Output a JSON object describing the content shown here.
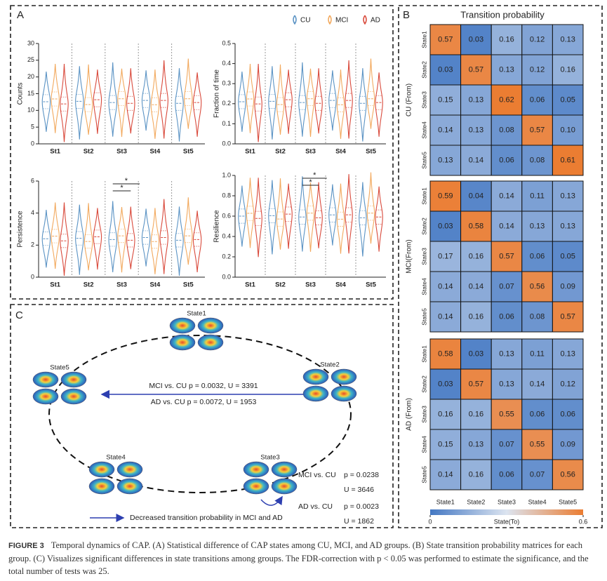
{
  "panel_a": {
    "letter": "A",
    "legend": [
      {
        "name": "CU",
        "color": "#5b93c4"
      },
      {
        "name": "MCI",
        "color": "#f2a95e"
      },
      {
        "name": "AD",
        "color": "#d94a3c"
      }
    ],
    "plots": [
      {
        "ylabel": "Counts",
        "categories": [
          "St1",
          "St2",
          "St3",
          "St4",
          "St5"
        ],
        "ylim": [
          0,
          30
        ],
        "yticks": [
          0,
          5,
          10,
          15,
          20,
          25,
          30
        ],
        "annotations": []
      },
      {
        "ylabel": "Fraction of time",
        "categories": [
          "St1",
          "St2",
          "St3",
          "St4",
          "St5"
        ],
        "ylim": [
          0,
          0.5
        ],
        "yticks": [
          {
            "value": 0,
            "label": "0.0"
          },
          0.1,
          0.2,
          0.3,
          0.4,
          0.5
        ],
        "annotations": []
      },
      {
        "ylabel": "Persistence",
        "categories": [
          "St1",
          "St2",
          "St3",
          "St4",
          "St5"
        ],
        "ylim": [
          0,
          6
        ],
        "yticks": [
          0,
          2,
          4,
          6
        ],
        "annotations": [
          "*",
          "*"
        ]
      },
      {
        "ylabel": "Resilience",
        "categories": [
          "St1",
          "St2",
          "St3",
          "St4",
          "St5"
        ],
        "ylim": [
          0,
          1
        ],
        "yticks": [
          {
            "value": 0,
            "label": "0.0"
          },
          0.2,
          0.4,
          0.6,
          0.8,
          {
            "value": 1,
            "label": "1.0"
          }
        ],
        "annotations": [
          "*",
          "*"
        ]
      }
    ]
  },
  "panel_b": {
    "letter": "B",
    "title": "Transition probability",
    "states": [
      "State1",
      "State2",
      "State3",
      "State4",
      "State5"
    ],
    "matrices": [
      {
        "label": "CU (From)",
        "values": [
          [
            0.57,
            0.03,
            0.16,
            0.12,
            0.13
          ],
          [
            0.03,
            0.57,
            0.13,
            0.12,
            0.16
          ],
          [
            0.15,
            0.13,
            0.62,
            0.06,
            0.05
          ],
          [
            0.14,
            0.13,
            0.08,
            0.57,
            {
              "value": 0.1,
              "label": "0.10"
            }
          ],
          [
            0.13,
            0.14,
            0.06,
            0.08,
            0.61
          ]
        ]
      },
      {
        "label": "MCI(From)",
        "values": [
          [
            0.59,
            0.04,
            0.14,
            0.11,
            0.13
          ],
          [
            0.03,
            0.58,
            0.14,
            0.13,
            0.13
          ],
          [
            0.17,
            0.16,
            0.57,
            0.06,
            0.05
          ],
          [
            0.14,
            0.14,
            0.07,
            0.56,
            0.09
          ],
          [
            0.14,
            0.16,
            0.06,
            0.08,
            0.57
          ]
        ]
      },
      {
        "label": "AD (From)",
        "values": [
          [
            0.58,
            0.03,
            0.13,
            0.11,
            0.13
          ],
          [
            0.03,
            0.57,
            0.13,
            0.14,
            0.12
          ],
          [
            0.16,
            0.16,
            0.55,
            0.06,
            0.06
          ],
          [
            0.15,
            0.13,
            0.07,
            0.55,
            0.09
          ],
          [
            0.14,
            0.16,
            0.06,
            0.07,
            0.56
          ]
        ]
      }
    ],
    "colorbar": {
      "ticks": [
        0,
        0.6
      ],
      "label": "State(To)"
    }
  },
  "panel_c": {
    "letter": "C",
    "states": [
      "State1",
      "State2",
      "State3",
      "State4",
      "State5"
    ],
    "arrow_texts": [
      "MCI vs. CU   p = 0.0032, U = 3391",
      "AD vs. CU   p = 0.0072, U = 1953"
    ],
    "state3_texts": {
      "mci": "MCI vs. CU",
      "mci_p": "p = 0.0238",
      "mci_u": "U = 3646",
      "ad": "AD vs. CU",
      "ad_p": "p = 0.0023",
      "ad_u": "U = 1862"
    },
    "legend": "Decreased transition probability in MCI and AD"
  },
  "caption": {
    "label": "FIGURE 3",
    "text": "Temporal dynamics of CAP. (A) Statistical difference of CAP states among CU, MCI, and AD groups. (B) State transition probability matrices for each group. (C) Visualizes significant differences in state transitions among groups. The FDR-correction with p < 0.05 was performed to estimate the significance, and the total number of tests was 25."
  }
}
